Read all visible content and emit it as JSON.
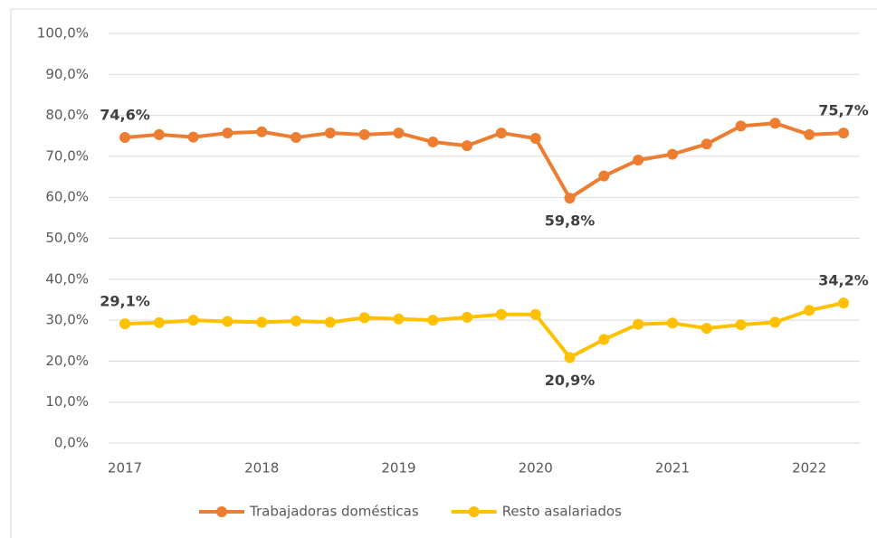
{
  "chart_data": {
    "type": "line",
    "categories": [
      "2017",
      null,
      null,
      null,
      "2018",
      null,
      null,
      null,
      "2019",
      null,
      null,
      null,
      "2020",
      null,
      null,
      null,
      "2021",
      null,
      null,
      null,
      "2022",
      null
    ],
    "series": [
      {
        "name": "Trabajadoras domésticas",
        "color": "#ed7d31",
        "values": [
          74.6,
          75.3,
          74.7,
          75.7,
          76.0,
          74.6,
          75.7,
          75.3,
          75.7,
          73.5,
          72.6,
          75.7,
          74.4,
          59.8,
          65.2,
          69.1,
          70.5,
          73.0,
          77.4,
          78.1,
          75.3,
          75.7
        ],
        "value_labels": [
          "74,6%",
          null,
          null,
          null,
          null,
          null,
          null,
          null,
          null,
          null,
          null,
          null,
          null,
          "59,8%",
          null,
          null,
          null,
          null,
          null,
          null,
          null,
          "75,7%"
        ]
      },
      {
        "name": "Resto asalariados",
        "color": "#ffc000",
        "values": [
          29.1,
          29.4,
          30.0,
          29.7,
          29.5,
          29.8,
          29.5,
          30.6,
          30.3,
          30.0,
          30.7,
          31.4,
          31.4,
          20.9,
          25.3,
          29.0,
          29.3,
          28.0,
          28.9,
          29.5,
          32.4,
          34.2
        ],
        "value_labels": [
          "29,1%",
          null,
          null,
          null,
          null,
          null,
          null,
          null,
          null,
          null,
          null,
          null,
          null,
          "20,9%",
          null,
          null,
          null,
          null,
          null,
          null,
          null,
          "34,2%"
        ]
      }
    ],
    "ylim": [
      0,
      100
    ],
    "yticks": [
      {
        "value": 0,
        "label": "0,0%"
      },
      {
        "value": 10,
        "label": "10,0%"
      },
      {
        "value": 20,
        "label": "20,0%"
      },
      {
        "value": 30,
        "label": "30,0%"
      },
      {
        "value": 40,
        "label": "40,0%"
      },
      {
        "value": 50,
        "label": "50,0%"
      },
      {
        "value": 60,
        "label": "60,0%"
      },
      {
        "value": 70,
        "label": "70,0%"
      },
      {
        "value": 80,
        "label": "80,0%"
      },
      {
        "value": 90,
        "label": "90,0%"
      },
      {
        "value": 100,
        "label": "100,0%"
      }
    ],
    "grid": true,
    "legend": "bottom"
  }
}
